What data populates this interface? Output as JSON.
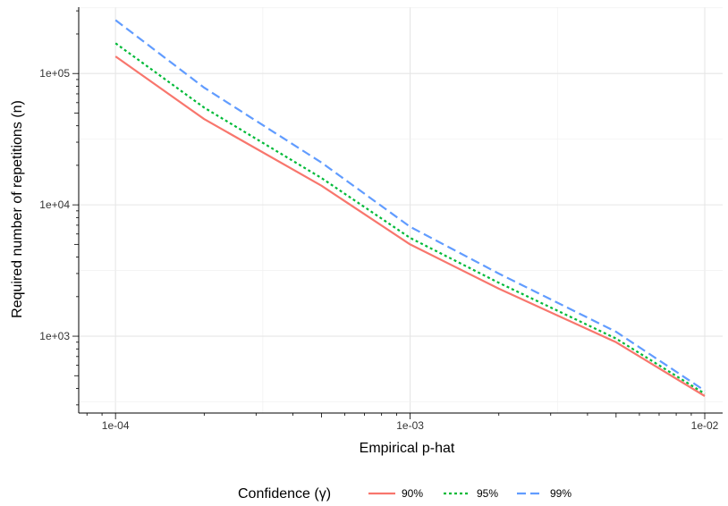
{
  "chart_data": {
    "type": "line",
    "title": "",
    "xlabel": "Empirical p-hat",
    "ylabel": "Required number of repetitions (n)",
    "x_scale": "log10",
    "y_scale": "log10",
    "xlim": [
      7.5e-05,
      0.0115
    ],
    "ylim": [
      260,
      320000
    ],
    "x_ticks": [
      {
        "value": 0.0001,
        "label": "1e-04"
      },
      {
        "value": 0.001,
        "label": "1e-03"
      },
      {
        "value": 0.01,
        "label": "1e-02"
      }
    ],
    "y_ticks": [
      {
        "value": 1000,
        "label": "1e+03"
      },
      {
        "value": 10000,
        "label": "1e+04"
      },
      {
        "value": 100000,
        "label": "1e+05"
      }
    ],
    "grid": true,
    "legend": {
      "title": "Confidence (γ)",
      "position": "bottom"
    },
    "series": [
      {
        "name": "90%",
        "color": "#F8766D",
        "dash": "solid",
        "x": [
          0.0001,
          0.0002,
          0.0005,
          0.001,
          0.002,
          0.005,
          0.01
        ],
        "y": [
          135000,
          45000,
          14000,
          5000,
          2300,
          900,
          350
        ]
      },
      {
        "name": "95%",
        "color": "#00BA38",
        "dash": "dotted",
        "x": [
          0.0001,
          0.0002,
          0.0005,
          0.001,
          0.002,
          0.005,
          0.01
        ],
        "y": [
          170000,
          55000,
          16000,
          5600,
          2550,
          960,
          365
        ]
      },
      {
        "name": "99%",
        "color": "#619CFF",
        "dash": "dashed",
        "x": [
          0.0001,
          0.0002,
          0.0005,
          0.001,
          0.002,
          0.005,
          0.01
        ],
        "y": [
          255000,
          78000,
          21000,
          6800,
          3000,
          1080,
          385
        ]
      }
    ]
  }
}
